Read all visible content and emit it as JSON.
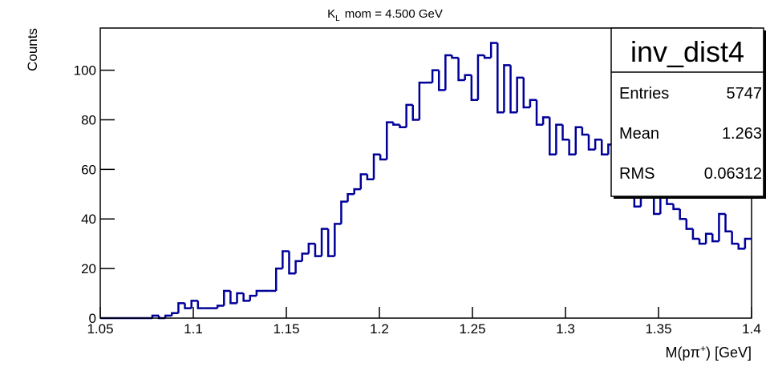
{
  "chart_data": {
    "type": "histogram",
    "title": [
      "K",
      "L",
      "mom = 4.500 GeV"
    ],
    "x_label": [
      "M(pπ",
      "+",
      ") [GeV]"
    ],
    "y_label": "Counts",
    "bins": [
      1.05,
      1.0535,
      1.057,
      1.0605,
      1.064,
      1.0675,
      1.071,
      1.0745,
      1.078,
      1.0815,
      1.085,
      1.0885,
      1.092,
      1.0955,
      1.099,
      1.1025,
      1.106,
      1.1095,
      1.113,
      1.1165,
      1.12,
      1.1235,
      1.127,
      1.1305,
      1.134,
      1.1375,
      1.141,
      1.1445,
      1.148,
      1.1515,
      1.155,
      1.1585,
      1.162,
      1.1655,
      1.169,
      1.1725,
      1.176,
      1.1795,
      1.183,
      1.1865,
      1.19,
      1.1935,
      1.197,
      1.2005,
      1.204,
      1.2075,
      1.211,
      1.2145,
      1.218,
      1.2215,
      1.225,
      1.2285,
      1.232,
      1.2355,
      1.239,
      1.2425,
      1.246,
      1.2495,
      1.253,
      1.2565,
      1.26,
      1.2635,
      1.267,
      1.2705,
      1.274,
      1.2775,
      1.281,
      1.2845,
      1.288,
      1.2915,
      1.295,
      1.2985,
      1.302,
      1.3055,
      1.309,
      1.3125,
      1.316,
      1.3195,
      1.323,
      1.3265,
      1.33,
      1.3335,
      1.337,
      1.3405,
      1.344,
      1.3475,
      1.351,
      1.3545,
      1.358,
      1.3615,
      1.365,
      1.3685,
      1.372,
      1.3755,
      1.379,
      1.3825,
      1.386,
      1.3895,
      1.393,
      1.3965,
      1.4
    ],
    "values": [
      0,
      0,
      0,
      0,
      0,
      0,
      0,
      0,
      1,
      0,
      1,
      2,
      6,
      4,
      7,
      4,
      4,
      4,
      5,
      11,
      6,
      10,
      7,
      9,
      11,
      11,
      11,
      20,
      27,
      18,
      23,
      26,
      30,
      25,
      36,
      25,
      38,
      47,
      50,
      52,
      58,
      56,
      66,
      64,
      79,
      78,
      77,
      86,
      80,
      95,
      95,
      100,
      92,
      106,
      105,
      96,
      98,
      88,
      106,
      105,
      111,
      83,
      102,
      83,
      97,
      85,
      88,
      78,
      81,
      66,
      78,
      72,
      66,
      77,
      74,
      68,
      72,
      66,
      70,
      67,
      64,
      70,
      45,
      60,
      50,
      42,
      49,
      46,
      44,
      40,
      36,
      32,
      30,
      34,
      31,
      42,
      35,
      30,
      28,
      32
    ],
    "color": "#000099",
    "xlim": [
      1.05,
      1.4
    ],
    "ylim": [
      0,
      117
    ],
    "xticks": [
      1.05,
      1.1,
      1.15,
      1.2,
      1.25,
      1.3,
      1.35,
      1.4
    ],
    "yticks": [
      0,
      20,
      40,
      60,
      80,
      100
    ],
    "stats_box": {
      "title": "inv_dist4",
      "rows": [
        [
          "Entries",
          "5747"
        ],
        [
          "Mean",
          "1.263"
        ],
        [
          "RMS",
          "0.06312"
        ]
      ]
    }
  }
}
